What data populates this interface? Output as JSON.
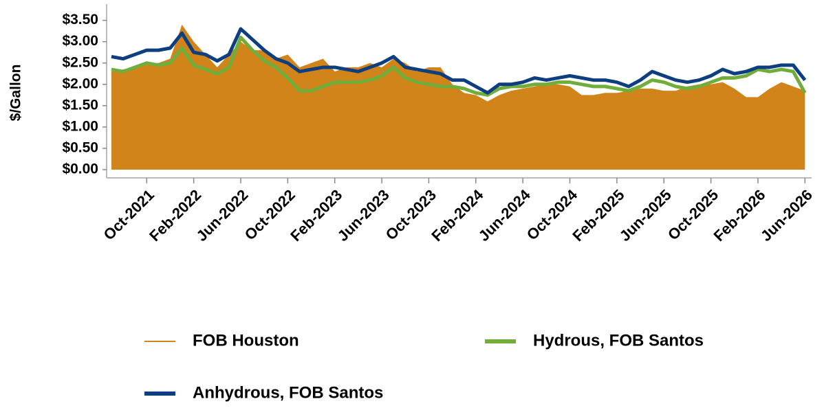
{
  "chart_data": {
    "type": "area_line",
    "ylabel": "$/Gallon",
    "categories": [
      null,
      null,
      null,
      "Oct-2021",
      null,
      null,
      null,
      "Feb-2022",
      null,
      null,
      null,
      "Jun-2022",
      null,
      null,
      null,
      "Oct-2022",
      null,
      null,
      null,
      "Feb-2023",
      null,
      null,
      null,
      "Jun-2023",
      null,
      null,
      null,
      "Oct-2023",
      null,
      null,
      null,
      "Feb-2024",
      null,
      null,
      null,
      "Jun-2024",
      null,
      null,
      null,
      "Oct-2024",
      null,
      null,
      null,
      "Feb-2025",
      null,
      null,
      null,
      "Jun-2025",
      null,
      null,
      null,
      "Oct-2025",
      null,
      null,
      null,
      "Feb-2026",
      null,
      null,
      null,
      "Jun-2026"
    ],
    "series": [
      {
        "name": "FOB Houston",
        "kind": "area",
        "color": "#d08419",
        "values": [
          2.3,
          2.35,
          2.4,
          2.5,
          2.5,
          2.6,
          3.4,
          3.0,
          2.7,
          2.4,
          2.7,
          3.0,
          2.8,
          2.8,
          2.6,
          2.7,
          2.4,
          2.5,
          2.6,
          2.3,
          2.4,
          2.4,
          2.5,
          2.4,
          2.6,
          2.5,
          2.3,
          2.4,
          2.4,
          2.0,
          1.8,
          1.75,
          1.6,
          1.75,
          1.85,
          1.9,
          1.95,
          2.0,
          2.0,
          1.95,
          1.75,
          1.75,
          1.8,
          1.8,
          1.85,
          1.9,
          1.9,
          1.85,
          1.85,
          1.95,
          2.0,
          2.0,
          2.05,
          1.9,
          1.7,
          1.7,
          1.9,
          2.05,
          1.95,
          1.85
        ]
      },
      {
        "name": "Hydrous, FOB Santos",
        "kind": "line",
        "color": "#71ad3a",
        "values": [
          2.35,
          2.3,
          2.4,
          2.5,
          2.45,
          2.5,
          2.85,
          2.45,
          2.35,
          2.25,
          2.4,
          3.1,
          2.8,
          2.55,
          2.4,
          2.15,
          1.85,
          1.85,
          1.95,
          2.05,
          2.05,
          2.05,
          2.1,
          2.2,
          2.4,
          2.15,
          2.05,
          2.0,
          1.95,
          1.95,
          1.9,
          1.8,
          1.75,
          1.9,
          1.95,
          1.95,
          2.0,
          2.0,
          2.05,
          2.05,
          2.0,
          1.95,
          1.95,
          1.9,
          1.85,
          1.95,
          2.1,
          2.05,
          1.95,
          1.9,
          1.95,
          2.05,
          2.15,
          2.15,
          2.2,
          2.35,
          2.3,
          2.35,
          2.3,
          1.8
        ]
      },
      {
        "name": "Anhydrous, FOB Santos",
        "kind": "line",
        "color": "#0d3f80",
        "values": [
          2.65,
          2.6,
          2.7,
          2.8,
          2.8,
          2.85,
          3.2,
          2.75,
          2.7,
          2.55,
          2.7,
          3.3,
          3.05,
          2.8,
          2.6,
          2.5,
          2.3,
          2.35,
          2.4,
          2.4,
          2.35,
          2.3,
          2.4,
          2.5,
          2.65,
          2.4,
          2.35,
          2.3,
          2.25,
          2.1,
          2.1,
          1.95,
          1.8,
          2.0,
          2.0,
          2.05,
          2.15,
          2.1,
          2.15,
          2.2,
          2.15,
          2.1,
          2.1,
          2.05,
          1.95,
          2.1,
          2.3,
          2.2,
          2.1,
          2.05,
          2.1,
          2.2,
          2.35,
          2.25,
          2.3,
          2.4,
          2.4,
          2.45,
          2.45,
          2.1
        ]
      }
    ],
    "ylim": [
      0,
      3.8
    ],
    "yticks": [
      {
        "value": 0,
        "label": "$0.00"
      },
      {
        "value": 0.5,
        "label": "$0.50"
      },
      {
        "value": 1,
        "label": "$1.00"
      },
      {
        "value": 1.5,
        "label": "$1.50"
      },
      {
        "value": 2,
        "label": "$2.00"
      },
      {
        "value": 2.5,
        "label": "$2.50"
      },
      {
        "value": 3,
        "label": "$3.00"
      },
      {
        "value": 3.5,
        "label": "$3.50"
      }
    ],
    "legend": "bottom"
  }
}
